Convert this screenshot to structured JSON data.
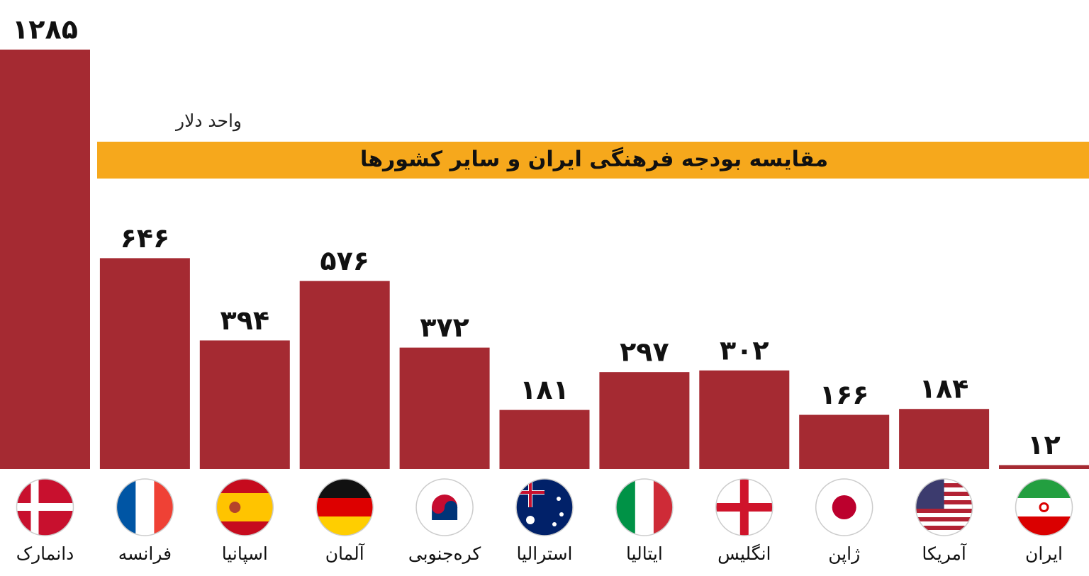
{
  "chart_data": {
    "type": "bar",
    "title": "مقایسه بودجه فرهنگی ایران و سایر کشورها",
    "subtitle": "واحد دلار",
    "categories": [
      "دانمارک",
      "فرانسه",
      "اسپانیا",
      "آلمان",
      "کره‌جنوبی",
      "استرالیا",
      "ایتالیا",
      "انگلیس",
      "ژاپن",
      "آمریکا",
      "ایران"
    ],
    "values": [
      1285,
      646,
      394,
      576,
      372,
      181,
      297,
      302,
      166,
      184,
      12
    ],
    "value_labels": [
      "۱۲۸۵",
      "۶۴۶",
      "۳۹۴",
      "۵۷۶",
      "۳۷۲",
      "۱۸۱",
      "۲۹۷",
      "۳۰۲",
      "۱۶۶",
      "۱۸۴",
      "۱۲"
    ],
    "color": "#a52a32"
  }
}
